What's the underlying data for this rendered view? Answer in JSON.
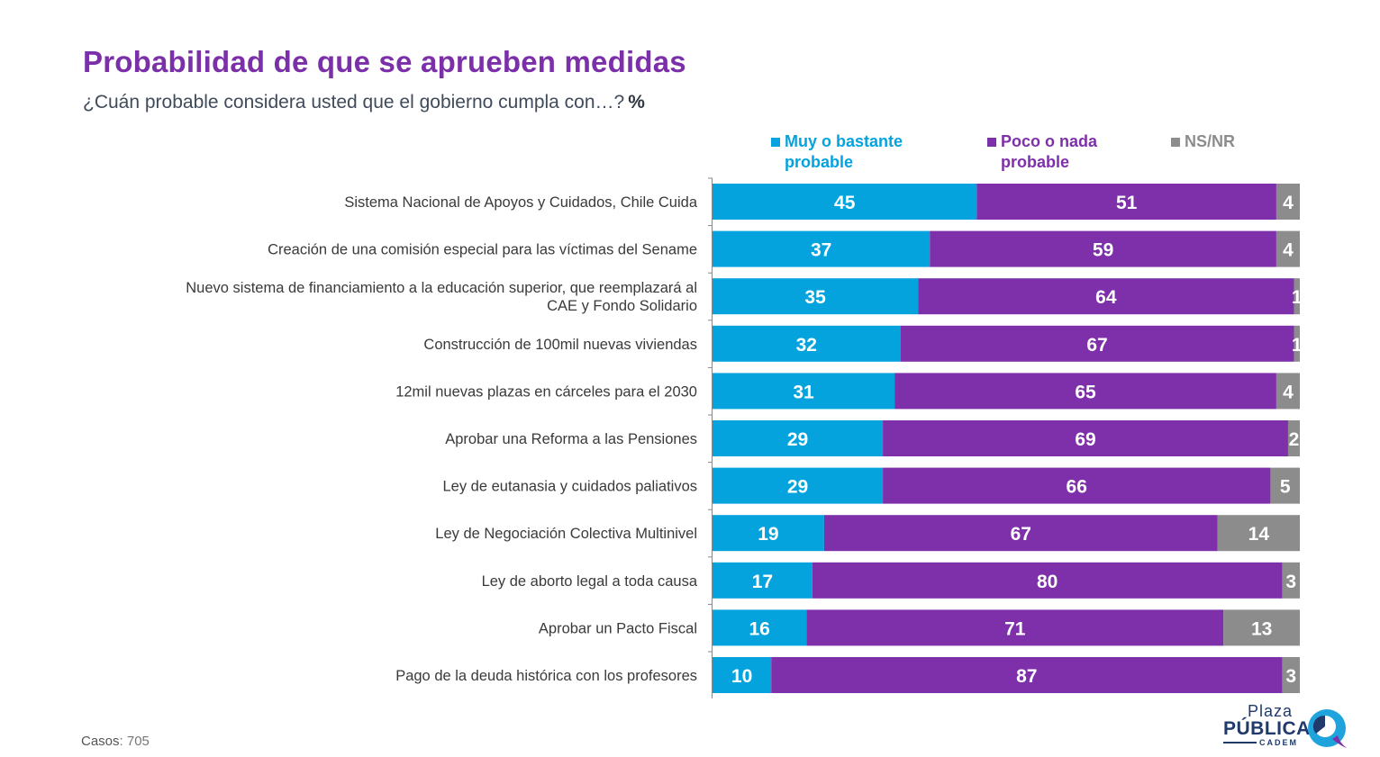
{
  "header": {
    "title": "Probabilidad de que se aprueben medidas",
    "subtitle": "¿Cuán probable considera usted que el gobierno cumpla con…?",
    "unit": "%"
  },
  "legend": [
    {
      "label": "Muy o bastante probable",
      "color": "#05A3DE"
    },
    {
      "label": "Poco o nada probable",
      "color": "#7E2FAA"
    },
    {
      "label": "NS/NR",
      "color": "#8C8C8C"
    }
  ],
  "chart_data": {
    "type": "bar",
    "orientation": "horizontal",
    "stacked": true,
    "xlim": [
      0,
      100
    ],
    "categories": [
      "Sistema Nacional de Apoyos y Cuidados, Chile Cuida",
      "Creación de una comisión especial para las víctimas del Sename",
      "Nuevo sistema de financiamiento a la educación superior, que reemplazará al CAE y Fondo Solidario",
      "Construcción de 100mil nuevas viviendas",
      "12mil nuevas plazas en cárceles para el 2030",
      "Aprobar una Reforma a las Pensiones",
      "Ley de eutanasia y cuidados paliativos",
      "Ley de Negociación Colectiva Multinivel",
      "Ley de aborto legal a toda causa",
      "Aprobar un Pacto Fiscal",
      "Pago de la deuda histórica con los profesores"
    ],
    "series": [
      {
        "name": "Muy o bastante probable",
        "color": "#05A3DE",
        "values": [
          45,
          37,
          35,
          32,
          31,
          29,
          29,
          19,
          17,
          16,
          10
        ]
      },
      {
        "name": "Poco o nada probable",
        "color": "#7E2FAA",
        "values": [
          51,
          59,
          64,
          67,
          65,
          69,
          66,
          67,
          80,
          71,
          87
        ]
      },
      {
        "name": "NS/NR",
        "color": "#8C8C8C",
        "values": [
          4,
          4,
          1,
          1,
          4,
          2,
          5,
          14,
          3,
          13,
          3
        ]
      }
    ]
  },
  "footer": {
    "casos_label": "Casos",
    "casos_value": ": 705"
  },
  "logo": {
    "line1": "Plaza",
    "line2": "PÚBLICA",
    "line3": "CADEM"
  }
}
